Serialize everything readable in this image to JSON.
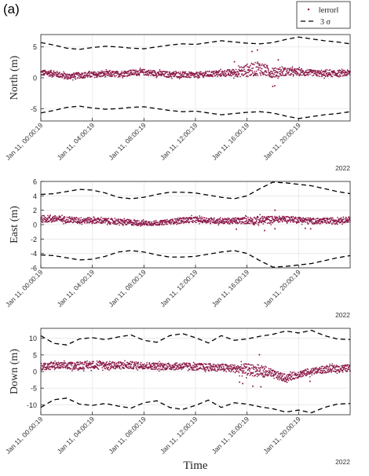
{
  "panel_label": "(a)",
  "colors": {
    "error": "#8b1a4a",
    "sigma": "#000000",
    "grid": "#e6e6e6",
    "axis": "#222222"
  },
  "legend": {
    "placement": "top-right",
    "entries": [
      "‖error‖",
      "3 σ"
    ]
  },
  "xlabel": "Time",
  "year_label": "2022",
  "chart_data": [
    {
      "type": "line",
      "ylabel": "North (m)",
      "ylim": [
        -7,
        7
      ],
      "yticks": [
        -5,
        0,
        5
      ],
      "x_tick_labels": [
        "Jan 11, 00:00:19",
        "Jan 11, 04:00:19",
        "Jan 11, 08:00:19",
        "Jan 11, 12:00:19",
        "Jan 11, 16:00:19",
        "Jan 11, 20:00:19"
      ],
      "x_tick_hours": [
        0,
        4,
        8,
        12,
        16,
        20
      ],
      "x_range_hours": [
        0,
        24
      ],
      "grid": true,
      "series": [
        {
          "name": "‖error‖",
          "style": "dots",
          "hours": [
            0,
            1,
            2,
            3,
            4,
            5,
            6,
            7,
            8,
            9,
            10,
            11,
            12,
            13,
            14,
            15,
            16,
            17,
            18,
            19,
            20,
            21,
            22,
            23,
            24
          ],
          "center": [
            0.8,
            0.7,
            0.2,
            0.4,
            0.5,
            0.6,
            0.6,
            0.8,
            0.9,
            0.7,
            0.5,
            0.5,
            0.4,
            0.6,
            0.7,
            0.8,
            1.2,
            1.5,
            0.8,
            1.0,
            0.9,
            0.8,
            0.6,
            0.7,
            0.8
          ],
          "amp": [
            0.6,
            0.6,
            0.6,
            0.6,
            0.6,
            0.6,
            0.6,
            0.6,
            0.6,
            0.6,
            0.6,
            0.6,
            0.6,
            0.6,
            0.6,
            0.8,
            1.3,
            1.4,
            1.0,
            0.8,
            0.7,
            0.6,
            0.6,
            0.6,
            0.6
          ]
        },
        {
          "name": "3 σ",
          "style": "dashed",
          "hours": [
            0,
            1,
            2,
            3,
            4,
            5,
            6,
            7,
            8,
            9,
            10,
            11,
            12,
            13,
            14,
            15,
            16,
            17,
            18,
            19,
            20,
            21,
            22,
            23,
            24
          ],
          "upper": [
            5.7,
            5.3,
            4.8,
            4.6,
            4.9,
            5.1,
            5.0,
            4.8,
            4.7,
            5.0,
            5.3,
            5.5,
            5.4,
            5.7,
            6.0,
            5.8,
            5.6,
            5.5,
            5.7,
            6.2,
            6.6,
            6.3,
            6.0,
            5.8,
            5.5
          ],
          "lower": [
            -5.7,
            -5.3,
            -4.8,
            -4.6,
            -4.9,
            -5.1,
            -5.0,
            -4.8,
            -4.7,
            -5.0,
            -5.3,
            -5.5,
            -5.4,
            -5.7,
            -6.0,
            -5.8,
            -5.6,
            -5.5,
            -5.7,
            -6.2,
            -6.6,
            -6.3,
            -6.0,
            -5.8,
            -5.5
          ]
        }
      ]
    },
    {
      "type": "line",
      "ylabel": "East (m)",
      "ylim": [
        -6,
        6
      ],
      "yticks": [
        -6,
        -4,
        -2,
        0,
        2,
        4,
        6
      ],
      "x_tick_labels": [
        "Jan 11, 00:00:19",
        "Jan 11, 04:00:19",
        "Jan 11, 08:00:19",
        "Jan 11, 12:00:19",
        "Jan 11, 16:00:19",
        "Jan 11, 20:00:19"
      ],
      "x_tick_hours": [
        0,
        4,
        8,
        12,
        16,
        20
      ],
      "x_range_hours": [
        0,
        24
      ],
      "grid": true,
      "series": [
        {
          "name": "‖error‖",
          "style": "dots",
          "hours": [
            0,
            1,
            2,
            3,
            4,
            5,
            6,
            7,
            8,
            9,
            10,
            11,
            12,
            13,
            14,
            15,
            16,
            17,
            18,
            19,
            20,
            21,
            22,
            23,
            24
          ],
          "center": [
            0.8,
            0.8,
            0.7,
            0.6,
            0.6,
            0.5,
            0.4,
            0.3,
            0.2,
            0.2,
            0.4,
            0.6,
            0.7,
            0.6,
            0.5,
            0.5,
            0.6,
            0.6,
            0.7,
            0.8,
            0.7,
            0.5,
            0.5,
            0.6,
            0.7
          ],
          "amp": [
            0.6,
            0.6,
            0.5,
            0.5,
            0.5,
            0.5,
            0.5,
            0.5,
            0.4,
            0.4,
            0.4,
            0.5,
            0.5,
            0.5,
            0.5,
            0.5,
            0.6,
            0.7,
            0.6,
            0.5,
            0.5,
            0.5,
            0.5,
            0.5,
            0.5
          ]
        },
        {
          "name": "3 σ",
          "style": "dashed",
          "hours": [
            0,
            1,
            2,
            3,
            4,
            5,
            6,
            7,
            8,
            9,
            10,
            11,
            12,
            13,
            14,
            15,
            16,
            17,
            18,
            19,
            20,
            21,
            22,
            23,
            24
          ],
          "upper": [
            4.2,
            4.3,
            4.6,
            4.9,
            4.8,
            4.4,
            3.8,
            3.6,
            3.8,
            4.2,
            4.5,
            4.5,
            4.4,
            4.1,
            3.8,
            3.6,
            4.0,
            5.0,
            5.9,
            5.8,
            5.6,
            5.4,
            5.0,
            4.6,
            4.3
          ],
          "lower": [
            -4.2,
            -4.3,
            -4.6,
            -4.9,
            -4.8,
            -4.4,
            -3.8,
            -3.6,
            -3.8,
            -4.2,
            -4.5,
            -4.5,
            -4.4,
            -4.1,
            -3.8,
            -3.6,
            -4.0,
            -5.0,
            -5.9,
            -5.8,
            -5.6,
            -5.4,
            -5.0,
            -4.6,
            -4.3
          ]
        }
      ]
    },
    {
      "type": "line",
      "ylabel": "Down (m)",
      "ylim": [
        -13,
        13
      ],
      "yticks": [
        -10,
        -5,
        0,
        5,
        10
      ],
      "x_tick_labels": [
        "Jan 11, 00:00:19",
        "Jan 11, 04:00:19",
        "Jan 11, 08:00:19",
        "Jan 11, 12:00:19",
        "Jan 11, 16:00:19",
        "Jan 11, 20:00:19"
      ],
      "x_tick_hours": [
        0,
        4,
        8,
        12,
        16,
        20
      ],
      "x_range_hours": [
        0,
        24
      ],
      "grid": true,
      "series": [
        {
          "name": "‖error‖",
          "style": "dots",
          "hours": [
            0,
            1,
            2,
            3,
            4,
            5,
            6,
            7,
            8,
            9,
            10,
            11,
            12,
            13,
            14,
            15,
            16,
            17,
            18,
            19,
            20,
            21,
            22,
            23,
            24
          ],
          "center": [
            1.5,
            1.8,
            1.7,
            1.8,
            2.0,
            2.0,
            1.8,
            1.9,
            1.8,
            1.6,
            1.5,
            1.6,
            1.4,
            1.3,
            1.2,
            0.9,
            0.6,
            0.2,
            -0.8,
            -2.0,
            -0.8,
            0.0,
            0.6,
            0.9,
            1.0
          ],
          "amp": [
            1.3,
            1.3,
            1.3,
            1.4,
            1.4,
            1.4,
            1.4,
            1.4,
            1.3,
            1.3,
            1.3,
            1.3,
            1.3,
            1.4,
            1.4,
            1.5,
            2.2,
            2.2,
            1.6,
            1.4,
            1.3,
            1.3,
            1.3,
            1.3,
            1.3
          ]
        },
        {
          "name": "3 σ",
          "style": "dashed",
          "hours": [
            0,
            1,
            2,
            3,
            4,
            5,
            6,
            7,
            8,
            9,
            10,
            11,
            12,
            13,
            14,
            15,
            16,
            17,
            18,
            19,
            20,
            21,
            22,
            23,
            24
          ],
          "upper": [
            10.8,
            8.5,
            8.0,
            9.8,
            10.2,
            9.6,
            10.4,
            11.0,
            9.4,
            8.8,
            10.8,
            11.4,
            10.2,
            8.6,
            10.8,
            9.4,
            9.8,
            10.6,
            11.2,
            12.2,
            11.6,
            12.4,
            10.8,
            9.8,
            9.6
          ],
          "lower": [
            -10.8,
            -8.5,
            -8.0,
            -9.8,
            -10.2,
            -9.6,
            -10.4,
            -11.0,
            -9.4,
            -8.8,
            -10.8,
            -11.4,
            -10.2,
            -8.6,
            -10.8,
            -9.4,
            -9.8,
            -10.6,
            -11.2,
            -12.2,
            -11.6,
            -12.4,
            -10.8,
            -9.8,
            -9.6
          ]
        }
      ]
    }
  ]
}
